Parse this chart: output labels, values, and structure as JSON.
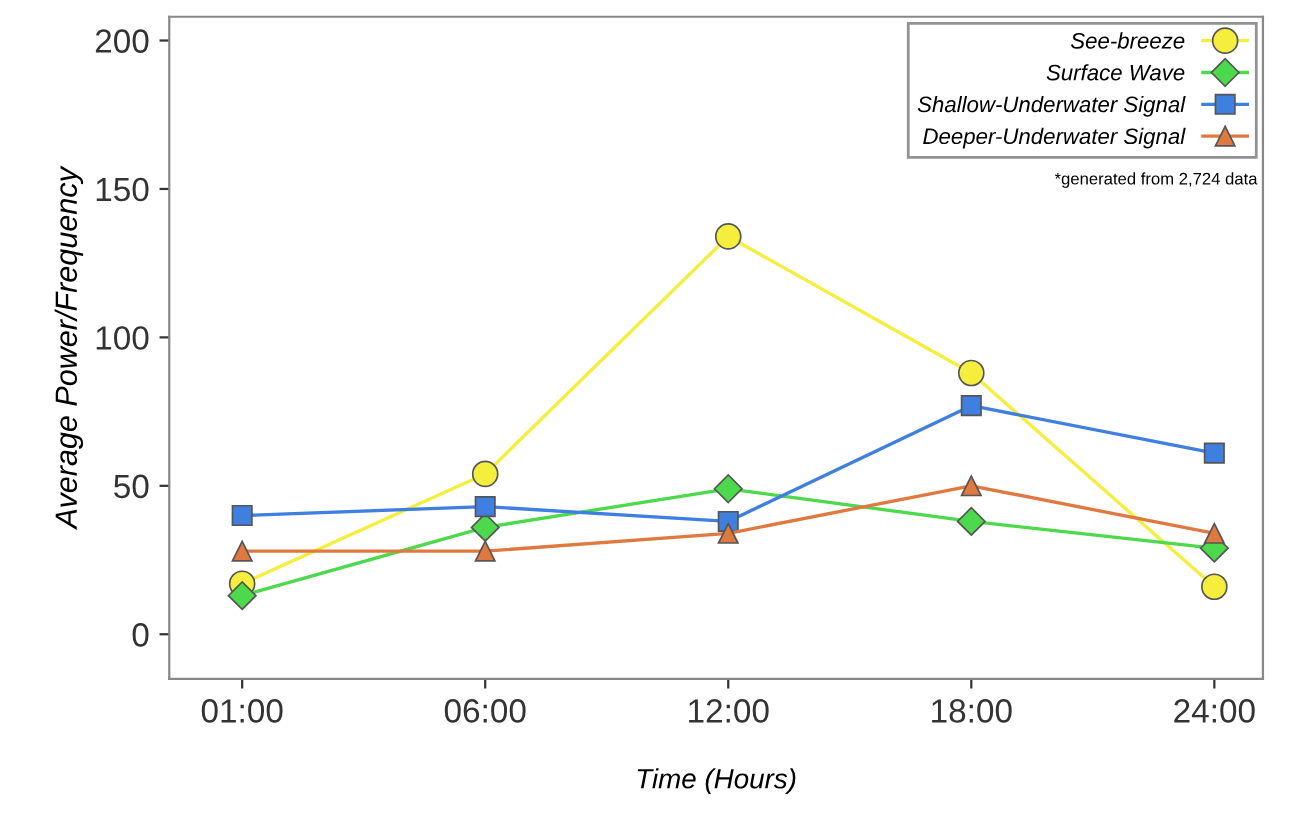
{
  "chart_data": {
    "type": "line",
    "xlabel": "Time (Hours)",
    "ylabel": "Average Power/Frequency",
    "categories": [
      "01:00",
      "06:00",
      "12:00",
      "18:00",
      "24:00"
    ],
    "series": [
      {
        "name": "See-breeze",
        "color": "#f5ee3c",
        "marker": "circle",
        "values": [
          17,
          54,
          134,
          88,
          16
        ]
      },
      {
        "name": "Surface Wave",
        "color": "#4cd94c",
        "marker": "diamond",
        "values": [
          13,
          36,
          49,
          38,
          29
        ]
      },
      {
        "name": "Shallow-Underwater Signal",
        "color": "#3f7fe0",
        "marker": "square",
        "values": [
          40,
          43,
          38,
          77,
          61
        ]
      },
      {
        "name": "Deeper-Underwater Signal",
        "color": "#e0793f",
        "marker": "triangle",
        "values": [
          28,
          28,
          34,
          50,
          34
        ]
      }
    ],
    "ylim": [
      -15,
      208
    ],
    "yticks": [
      0,
      50,
      100,
      150,
      200
    ],
    "grid": false,
    "legend": "top right",
    "annotations": [
      "*generated from 2,724 data"
    ]
  }
}
